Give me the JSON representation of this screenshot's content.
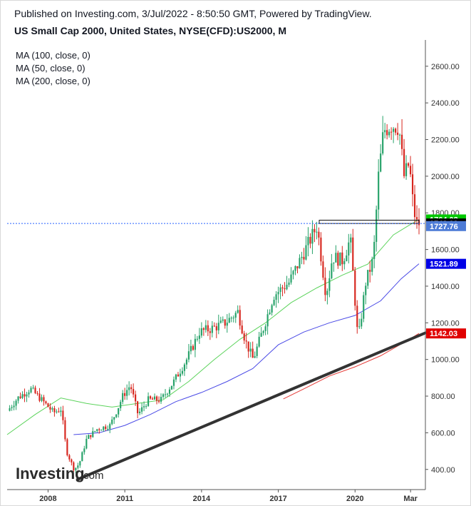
{
  "header": {
    "published": "Published on Investing.com, 3/Jul/2022 - 8:50:50 GMT, Powered by TradingView.",
    "title": "US Small Cap 2000, United States, NYSE(CFD):US2000, M"
  },
  "legend": [
    "MA (100, close, 0)",
    "MA (50, close, 0)",
    "MA (200, close, 0)"
  ],
  "watermark": {
    "brand": "Investing",
    "suffix": ".com"
  },
  "colors": {
    "up": "#26a269",
    "down": "#d7261e",
    "ma50": "#5bd35b",
    "ma100": "#4a4ae6",
    "ma200": "#e53935",
    "trendline": "#333333",
    "badge_green": "#00c800",
    "badge_black": "#000000",
    "badge_steel": "#4d7bd6",
    "badge_blue": "#0000e6",
    "badge_red": "#e00000"
  },
  "chart_data": {
    "type": "candlestick",
    "interval": "monthly",
    "y_axis": {
      "ticks": [
        400,
        600,
        800,
        1000,
        1200,
        1400,
        1600,
        1800,
        2000,
        2200,
        2400,
        2600
      ],
      "range": [
        290,
        2720
      ],
      "position": "right"
    },
    "x_axis": {
      "labels": [
        "2008",
        "2011",
        "2014",
        "2017",
        "2020",
        "Mar"
      ],
      "label_values": [
        2008.0,
        2011.0,
        2014.0,
        2017.0,
        2020.0,
        2022.17
      ],
      "range": [
        2006.4,
        2022.75
      ]
    },
    "price_badges": [
      {
        "label": "1764.02",
        "value": 1764.02,
        "color_key": "badge_green"
      },
      {
        "label": "1742.09",
        "value": 1742.09,
        "color_key": "badge_black"
      },
      {
        "label": "1727.76",
        "value": 1727.76,
        "color_key": "badge_steel"
      },
      {
        "label": "1521.89",
        "value": 1521.89,
        "color_key": "badge_blue"
      },
      {
        "label": "1142.03",
        "value": 1142.03,
        "color_key": "badge_red"
      }
    ],
    "price_line": {
      "value": 1742.09,
      "style": "dotted"
    },
    "anchors": [
      {
        "t": 2006.5,
        "v": 720
      },
      {
        "t": 2006.9,
        "v": 790
      },
      {
        "t": 2007.4,
        "v": 840
      },
      {
        "t": 2007.9,
        "v": 770
      },
      {
        "t": 2008.3,
        "v": 710
      },
      {
        "t": 2008.6,
        "v": 730
      },
      {
        "t": 2008.8,
        "v": 500
      },
      {
        "t": 2009.1,
        "v": 400
      },
      {
        "t": 2009.3,
        "v": 430
      },
      {
        "t": 2009.6,
        "v": 570
      },
      {
        "t": 2010.0,
        "v": 620
      },
      {
        "t": 2010.5,
        "v": 640
      },
      {
        "t": 2010.8,
        "v": 730
      },
      {
        "t": 2011.0,
        "v": 800
      },
      {
        "t": 2011.3,
        "v": 860
      },
      {
        "t": 2011.6,
        "v": 700
      },
      {
        "t": 2012.0,
        "v": 780
      },
      {
        "t": 2012.5,
        "v": 780
      },
      {
        "t": 2013.0,
        "v": 880
      },
      {
        "t": 2013.5,
        "v": 1000
      },
      {
        "t": 2014.0,
        "v": 1150
      },
      {
        "t": 2014.5,
        "v": 1170
      },
      {
        "t": 2015.0,
        "v": 1200
      },
      {
        "t": 2015.5,
        "v": 1260
      },
      {
        "t": 2015.8,
        "v": 1100
      },
      {
        "t": 2016.1,
        "v": 1000
      },
      {
        "t": 2016.5,
        "v": 1170
      },
      {
        "t": 2016.9,
        "v": 1350
      },
      {
        "t": 2017.5,
        "v": 1420
      },
      {
        "t": 2018.0,
        "v": 1560
      },
      {
        "t": 2018.6,
        "v": 1730
      },
      {
        "t": 2018.95,
        "v": 1350
      },
      {
        "t": 2019.2,
        "v": 1560
      },
      {
        "t": 2019.6,
        "v": 1540
      },
      {
        "t": 2019.9,
        "v": 1660
      },
      {
        "t": 2020.2,
        "v": 1100
      },
      {
        "t": 2020.5,
        "v": 1420
      },
      {
        "t": 2020.8,
        "v": 1550
      },
      {
        "t": 2021.0,
        "v": 2000
      },
      {
        "t": 2021.2,
        "v": 2250
      },
      {
        "t": 2021.5,
        "v": 2280
      },
      {
        "t": 2021.8,
        "v": 2270
      },
      {
        "t": 2022.0,
        "v": 2000
      },
      {
        "t": 2022.2,
        "v": 2070
      },
      {
        "t": 2022.35,
        "v": 1850
      },
      {
        "t": 2022.45,
        "v": 1760
      },
      {
        "t": 2022.5,
        "v": 1742
      }
    ],
    "moving_averages": [
      {
        "name": "MA (50, close, 0)",
        "color_key": "ma50",
        "points": [
          [
            2006.4,
            590
          ],
          [
            2007.5,
            700
          ],
          [
            2008.5,
            790
          ],
          [
            2009.5,
            760
          ],
          [
            2010.5,
            740
          ],
          [
            2011.5,
            760
          ],
          [
            2012.5,
            780
          ],
          [
            2013.5,
            880
          ],
          [
            2014.5,
            1000
          ],
          [
            2015.5,
            1110
          ],
          [
            2016.5,
            1200
          ],
          [
            2017.5,
            1310
          ],
          [
            2018.5,
            1390
          ],
          [
            2019.5,
            1460
          ],
          [
            2020.5,
            1520
          ],
          [
            2021.5,
            1680
          ],
          [
            2022.2,
            1740
          ],
          [
            2022.5,
            1764
          ]
        ]
      },
      {
        "name": "MA (100, close, 0)",
        "color_key": "ma100",
        "points": [
          [
            2009.0,
            590
          ],
          [
            2010.0,
            600
          ],
          [
            2011.0,
            640
          ],
          [
            2012.0,
            700
          ],
          [
            2013.0,
            770
          ],
          [
            2014.0,
            820
          ],
          [
            2015.0,
            880
          ],
          [
            2016.0,
            950
          ],
          [
            2017.0,
            1080
          ],
          [
            2018.0,
            1150
          ],
          [
            2019.0,
            1200
          ],
          [
            2020.0,
            1240
          ],
          [
            2021.0,
            1320
          ],
          [
            2021.8,
            1440
          ],
          [
            2022.5,
            1522
          ]
        ]
      },
      {
        "name": "MA (200, close, 0)",
        "color_key": "ma200",
        "points": [
          [
            2017.2,
            785
          ],
          [
            2018.0,
            840
          ],
          [
            2019.0,
            910
          ],
          [
            2020.0,
            960
          ],
          [
            2021.0,
            1020
          ],
          [
            2022.0,
            1100
          ],
          [
            2022.5,
            1142
          ]
        ]
      }
    ],
    "trendline": [
      [
        2009.15,
        345
      ],
      [
        2022.75,
        1145
      ]
    ],
    "resistance_box": {
      "t0": 2018.6,
      "t1": 2022.5,
      "v0": 1742,
      "v1": 1760
    }
  }
}
